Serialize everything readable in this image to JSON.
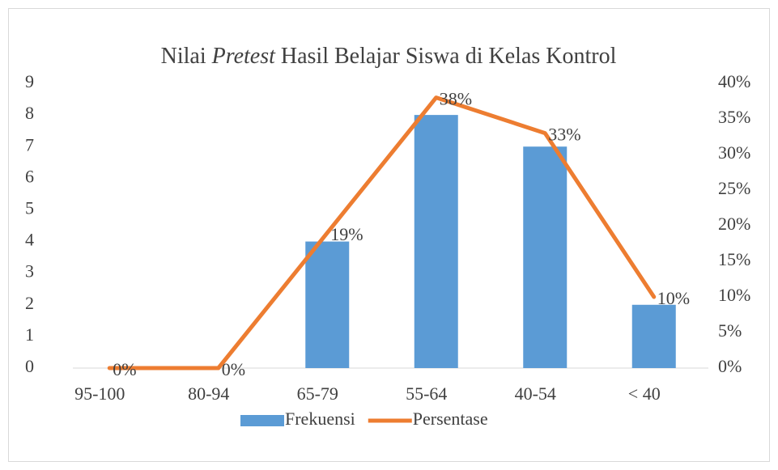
{
  "chart_data": {
    "type": "bar+line",
    "title": [
      "Nilai ",
      "Pretest",
      " Hasil Belajar Siswa di Kelas Kontrol"
    ],
    "categories": [
      "95-100",
      "80-94",
      "65-79",
      "55-64",
      "40-54",
      "< 40"
    ],
    "series": [
      {
        "name": "Frekuensi",
        "type": "bar",
        "color": "#5b9bd5",
        "values": [
          0,
          0,
          4,
          8,
          7,
          2
        ]
      },
      {
        "name": "Persentase",
        "type": "line",
        "axis": "y2",
        "color": "#ed7d31",
        "values": [
          0,
          0,
          19,
          38,
          33,
          10
        ],
        "value_labels": [
          "0%",
          "0%",
          "19%",
          "38%",
          "33%",
          "10%"
        ]
      }
    ],
    "ylim": [
      0,
      9
    ],
    "yticks": [
      0,
      1,
      2,
      3,
      4,
      5,
      6,
      7,
      8,
      9
    ],
    "y2lim": [
      0,
      40
    ],
    "y2ticks": [
      {
        "value": 0,
        "label": "0%"
      },
      {
        "value": 5,
        "label": "5%"
      },
      {
        "value": 10,
        "label": "10%"
      },
      {
        "value": 15,
        "label": "15%"
      },
      {
        "value": 20,
        "label": "20%"
      },
      {
        "value": 25,
        "label": "25%"
      },
      {
        "value": 30,
        "label": "30%"
      },
      {
        "value": 35,
        "label": "35%"
      },
      {
        "value": 40,
        "label": "40%"
      }
    ],
    "legend": "bottom"
  }
}
